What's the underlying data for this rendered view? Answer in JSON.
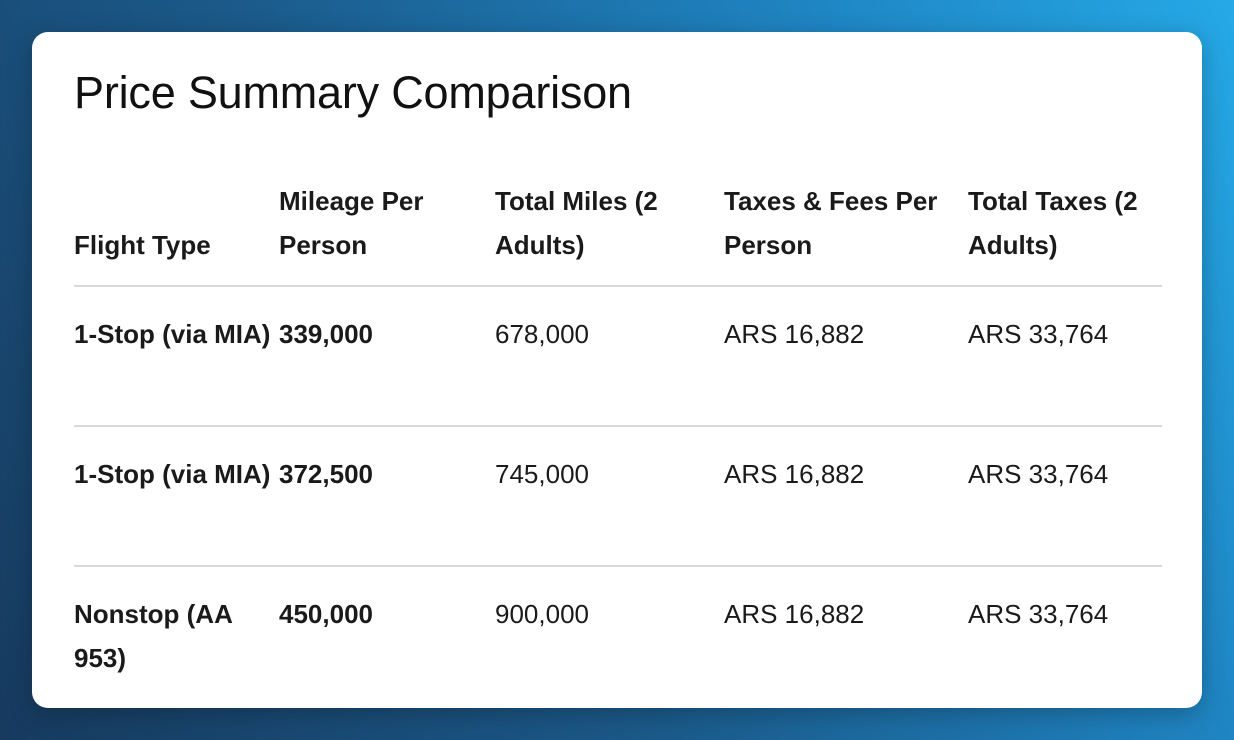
{
  "title": "Price Summary Comparison",
  "columns": [
    "Flight Type",
    "Mileage Per Person",
    "Total Miles (2 Adults)",
    "Taxes & Fees Per Person",
    "Total Taxes (2 Adults)"
  ],
  "rows": [
    {
      "flight_type": "1-Stop (via MIA)",
      "mileage_per_person": "339,000",
      "total_miles": "678,000",
      "taxes_per_person": "ARS 16,882",
      "total_taxes": "ARS 33,764"
    },
    {
      "flight_type": "1-Stop (via MIA)",
      "mileage_per_person": "372,500",
      "total_miles": "745,000",
      "taxes_per_person": "ARS 16,882",
      "total_taxes": "ARS 33,764"
    },
    {
      "flight_type": "Nonstop (AA 953)",
      "mileage_per_person": "450,000",
      "total_miles": "900,000",
      "taxes_per_person": "ARS 16,882",
      "total_taxes": "ARS 33,764"
    }
  ],
  "colors": {
    "card_background": "#ffffff",
    "text": "#1a1a1a",
    "divider": "#d6d8dc",
    "background_gradient_start": "#173a5e",
    "background_gradient_end": "#25a9e6"
  }
}
